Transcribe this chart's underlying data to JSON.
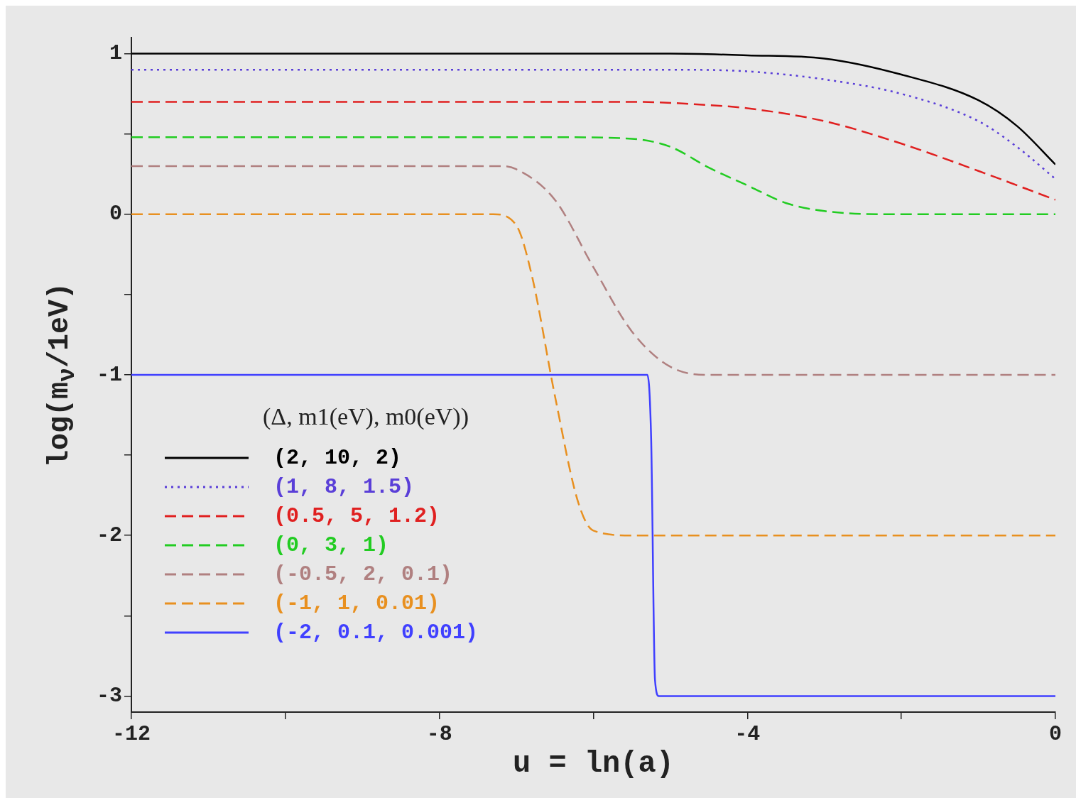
{
  "chart_data": {
    "type": "line",
    "xlabel": "u = ln(a)",
    "ylabel": "log(m$_{ν}$/1eV)",
    "legend_title": "(Δ, m1(eV), m0(eV))",
    "xlim": [
      -12,
      0
    ],
    "xticks": [
      -12,
      {
        "value": -10,
        "label": null
      },
      -8,
      {
        "value": -6,
        "label": null
      },
      -4,
      {
        "value": -2,
        "label": null
      },
      0
    ],
    "ylim": [
      -3.1,
      1.1
    ],
    "yticks": [
      -3,
      {
        "value": -2.5,
        "label": null
      },
      -2,
      {
        "value": -1.5,
        "label": null
      },
      -1,
      {
        "value": -0.5,
        "label": null
      },
      0,
      {
        "value": 0.5,
        "label": null
      },
      1
    ],
    "grid": false,
    "legend": "bottom left",
    "marker": "none",
    "series": [
      {
        "name": "(2, 10, 2)",
        "color": "#000000",
        "line_style": "solid",
        "x": [
          -12,
          -5,
          -4,
          -3,
          -2,
          -1,
          -0.5,
          0
        ],
        "values": [
          1,
          1,
          0.99,
          0.97,
          0.87,
          0.71,
          0.55,
          0.31
        ]
      },
      {
        "name": "(1, 8, 1.5)",
        "color": "#5a3fd8",
        "line_style": "dotted",
        "x": [
          -12,
          -5,
          -4,
          -3,
          -2,
          -1,
          -0.5,
          0
        ],
        "values": [
          0.9,
          0.9,
          0.89,
          0.84,
          0.75,
          0.58,
          0.42,
          0.22
        ]
      },
      {
        "name": "(0.5, 5, 1.2)",
        "color": "#e02020",
        "line_style": "dashed",
        "x": [
          -12,
          -5.5,
          -4.5,
          -4,
          -3,
          -2,
          -1,
          0
        ],
        "values": [
          0.7,
          0.7,
          0.68,
          0.66,
          0.58,
          0.44,
          0.27,
          0.09
        ]
      },
      {
        "name": "(0, 3, 1)",
        "color": "#22cc22",
        "line_style": "dashed",
        "x": [
          -12,
          -6.5,
          -5.5,
          -5,
          -4.5,
          -4,
          -3.5,
          -3,
          -2,
          0
        ],
        "values": [
          0.48,
          0.48,
          0.47,
          0.42,
          0.29,
          0.18,
          0.07,
          0.02,
          0,
          0
        ]
      },
      {
        "name": "(-0.5, 2, 0.1)",
        "color": "#b08080",
        "line_style": "dashed",
        "x": [
          -12,
          -7.2,
          -7,
          -6.5,
          -6,
          -5.5,
          -5,
          -4.5,
          0
        ],
        "values": [
          0.3,
          0.3,
          0.28,
          0.09,
          -0.33,
          -0.73,
          -0.95,
          -1,
          -1
        ]
      },
      {
        "name": "(-1, 1, 0.01)",
        "color": "#e89020",
        "line_style": "dashed",
        "x": [
          -12,
          -7.3,
          -7,
          -6.8,
          -6.5,
          -6.2,
          -6,
          -5.5,
          0
        ],
        "values": [
          0,
          0,
          -0.07,
          -0.38,
          -1.13,
          -1.79,
          -1.97,
          -2,
          -2
        ]
      },
      {
        "name": "(-2, 0.1, 0.001)",
        "color": "#4040ff",
        "line_style": "solid",
        "x": [
          -12,
          -5.3,
          -5.25,
          -5.2,
          -5.15,
          0
        ],
        "values": [
          -1,
          -1,
          -1.4,
          -2.9,
          -3,
          -3
        ]
      }
    ]
  }
}
